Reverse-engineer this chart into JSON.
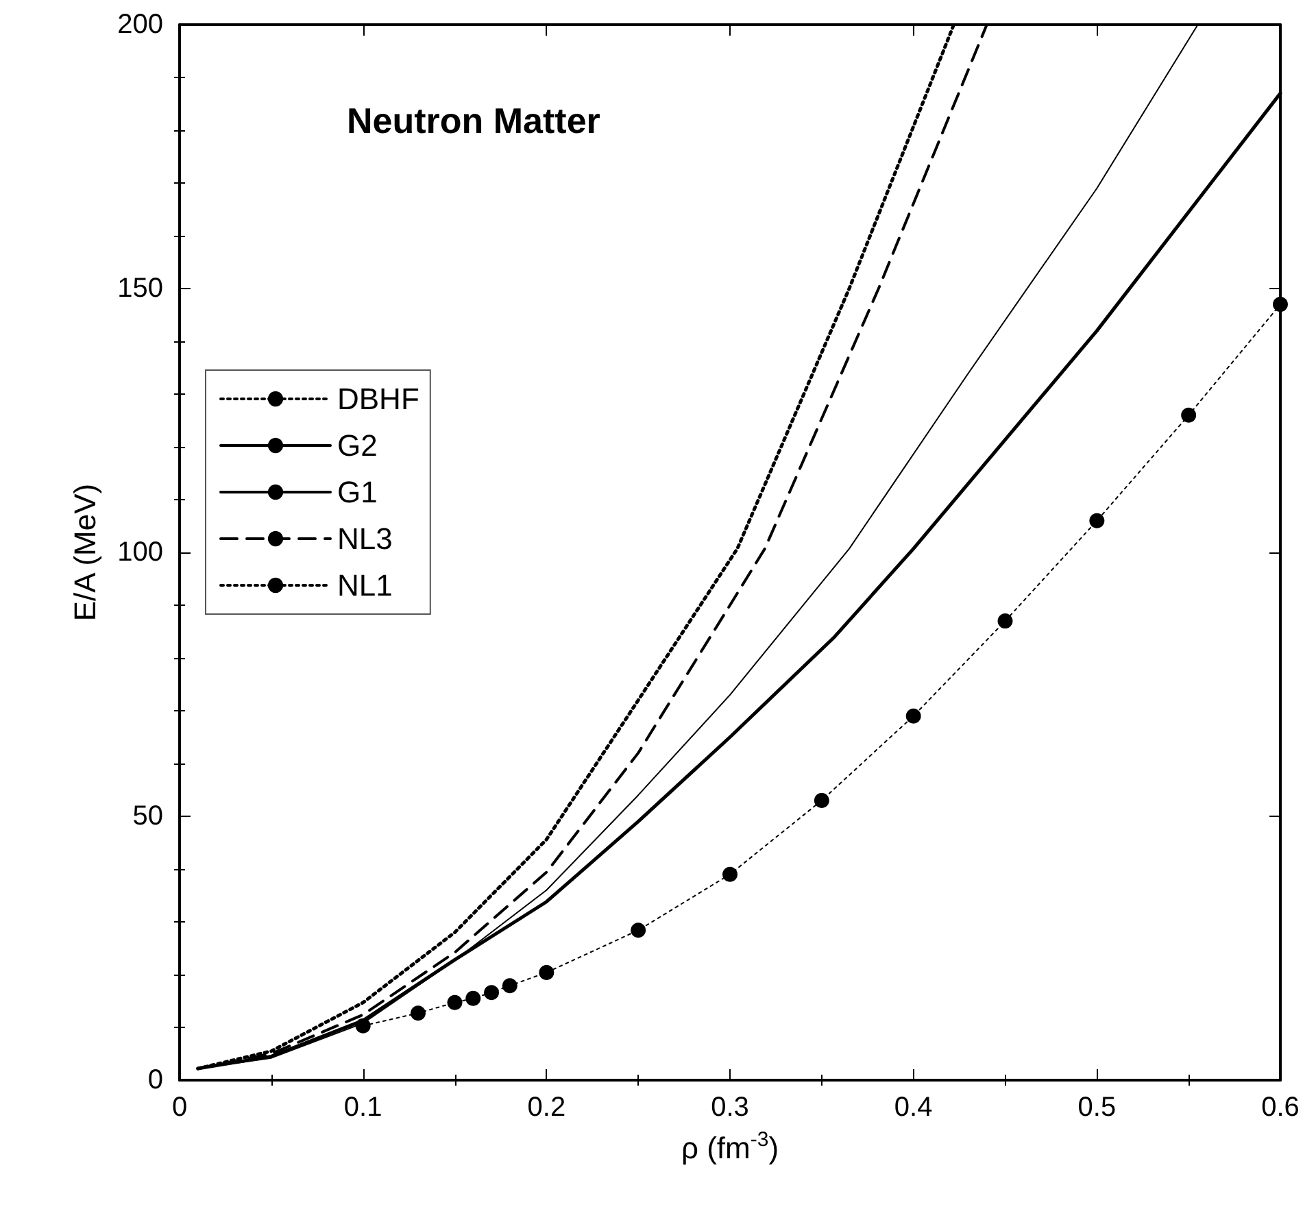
{
  "chart_data": {
    "type": "line",
    "title": "Neutron Matter",
    "xlabel": "ρ (fm$^{-3}$)",
    "ylabel": "E/A (MeV)",
    "xlim": [
      0,
      0.6
    ],
    "ylim": [
      0,
      200
    ],
    "xticks": [
      0,
      0.1,
      0.2,
      0.3,
      0.4,
      0.5,
      0.6
    ],
    "yticks": [
      0,
      50,
      100,
      150,
      200
    ],
    "legend": "left",
    "grid": false,
    "series": [
      {
        "name": "DBHF",
        "color": "#000000",
        "marker": "circle",
        "line_style": "dotted",
        "x": [
          0.1,
          0.13,
          0.15,
          0.16,
          0.17,
          0.18,
          0.2,
          0.25,
          0.3,
          0.35,
          0.4,
          0.45,
          0.5,
          0.55,
          0.6
        ],
        "values": [
          10.3,
          12.7,
          14.7,
          15.5,
          16.6,
          17.9,
          20.4,
          28.4,
          39,
          53,
          69,
          87,
          106,
          126,
          147
        ]
      },
      {
        "name": "G2",
        "color": "#000000",
        "marker": "none",
        "line_style": "solid",
        "x": [
          0.01,
          0.05,
          0.1,
          0.15,
          0.2,
          0.25,
          0.3,
          0.357,
          0.4,
          0.5,
          0.6
        ],
        "values": [
          2.2,
          4.5,
          11.3,
          22.8,
          33.8,
          49,
          65,
          84,
          100.7,
          142,
          187
        ]
      },
      {
        "name": "G1",
        "color": "#000000",
        "marker": "none",
        "line_style": "solid",
        "x": [
          0.01,
          0.05,
          0.1,
          0.15,
          0.2,
          0.25,
          0.3,
          0.365,
          0.43,
          0.5,
          0.555
        ],
        "values": [
          2.2,
          4.2,
          10.8,
          22.7,
          36,
          54,
          73,
          100.7,
          134,
          169,
          200
        ]
      },
      {
        "name": "NL3",
        "color": "#000000",
        "marker": "none",
        "line_style": "dashed",
        "x": [
          0.01,
          0.05,
          0.1,
          0.15,
          0.2,
          0.25,
          0.3,
          0.319,
          0.381,
          0.44
        ],
        "values": [
          2.2,
          5,
          12.4,
          24.2,
          39.4,
          62,
          90,
          100.7,
          150,
          200
        ]
      },
      {
        "name": "NL1",
        "color": "#000000",
        "marker": "none",
        "line_style": "dotted",
        "x": [
          0.01,
          0.05,
          0.1,
          0.15,
          0.2,
          0.25,
          0.304,
          0.365,
          0.422
        ],
        "values": [
          2.2,
          5.5,
          14.7,
          28,
          45.6,
          72,
          100.7,
          150,
          200
        ]
      }
    ]
  }
}
